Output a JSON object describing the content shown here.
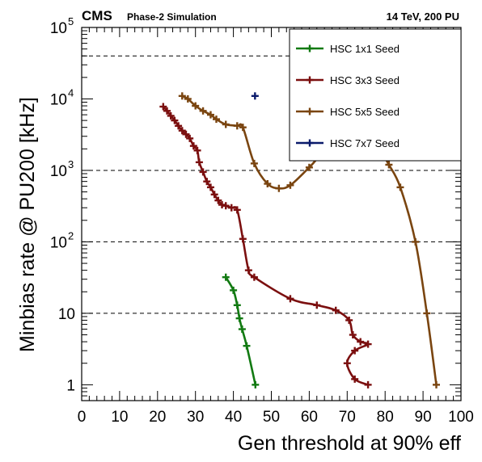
{
  "header": {
    "experiment": "CMS",
    "subtitle": "Phase-2 Simulation",
    "conditions": "14 TeV, 200 PU"
  },
  "chart_data": {
    "type": "line",
    "xlabel": "Gen threshold at 90% eff",
    "ylabel": "Minbias rate @ PU200 [kHz]",
    "xlim": [
      0,
      100
    ],
    "ylim": [
      0.6,
      100000
    ],
    "yscale": "log",
    "x_ticks": [
      0,
      10,
      20,
      30,
      40,
      50,
      60,
      70,
      80,
      90,
      100
    ],
    "y_ticks": [
      {
        "value": 1,
        "label": "1"
      },
      {
        "value": 10,
        "label": "10"
      },
      {
        "value": 100,
        "label": "10",
        "exp": "2"
      },
      {
        "value": 1000,
        "label": "10",
        "exp": "3"
      },
      {
        "value": 10000,
        "label": "10",
        "exp": "4"
      },
      {
        "value": 100000,
        "label": "10",
        "exp": "5"
      }
    ],
    "reference_lines_y": [
      10,
      100,
      1000,
      40000
    ],
    "legend_position": "top-right",
    "series": [
      {
        "name": "HSC 1x1 Seed",
        "color": "#127a12",
        "points": [
          [
            38,
            32
          ],
          [
            40,
            21
          ],
          [
            41,
            13
          ],
          [
            41.6,
            8.5
          ],
          [
            42.3,
            6
          ],
          [
            43.5,
            3.5
          ],
          [
            45.8,
            1
          ]
        ]
      },
      {
        "name": "HSC 3x3 Seed",
        "color": "#7b0f0f",
        "points": [
          [
            21.5,
            7800
          ],
          [
            22.5,
            6800
          ],
          [
            23.5,
            5800
          ],
          [
            24.5,
            5000
          ],
          [
            25.5,
            4200
          ],
          [
            26.5,
            3600
          ],
          [
            27.5,
            3200
          ],
          [
            28.5,
            2800
          ],
          [
            29.5,
            2200
          ],
          [
            30.5,
            1900
          ],
          [
            31,
            1300
          ],
          [
            32,
            950
          ],
          [
            33,
            700
          ],
          [
            34,
            580
          ],
          [
            35,
            460
          ],
          [
            36,
            380
          ],
          [
            37,
            330
          ],
          [
            38,
            320
          ],
          [
            39.5,
            300
          ],
          [
            41,
            280
          ],
          [
            42.5,
            110
          ],
          [
            44,
            40
          ],
          [
            45.5,
            32
          ],
          [
            55,
            16
          ],
          [
            62,
            13
          ],
          [
            67,
            11
          ],
          [
            70.5,
            8
          ],
          [
            71.5,
            5
          ],
          [
            73.5,
            4
          ],
          [
            75.5,
            3.7
          ],
          [
            72,
            3
          ],
          [
            70,
            2
          ],
          [
            72,
            1.2
          ],
          [
            75.5,
            1
          ]
        ]
      },
      {
        "name": "HSC 5x5 Seed",
        "color": "#7a4510",
        "points": [
          [
            26.5,
            11000
          ],
          [
            28,
            10000
          ],
          [
            30,
            8000
          ],
          [
            32,
            6800
          ],
          [
            34,
            6000
          ],
          [
            35.5,
            5200
          ],
          [
            38,
            4400
          ],
          [
            41,
            4200
          ],
          [
            42.5,
            4000
          ],
          [
            45.5,
            1250
          ],
          [
            49,
            650
          ],
          [
            52,
            560
          ],
          [
            55,
            620
          ],
          [
            60,
            1100
          ],
          [
            65,
            2000
          ],
          [
            71,
            2000
          ],
          [
            76,
            3000
          ],
          [
            79,
            1800
          ],
          [
            81,
            1200
          ],
          [
            84,
            580
          ],
          [
            88,
            100
          ],
          [
            91,
            10
          ],
          [
            93.5,
            1
          ]
        ]
      },
      {
        "name": "HSC 7x7 Seed",
        "color": "#0a1a6b",
        "points": [
          [
            45.7,
            11000
          ]
        ]
      }
    ]
  }
}
